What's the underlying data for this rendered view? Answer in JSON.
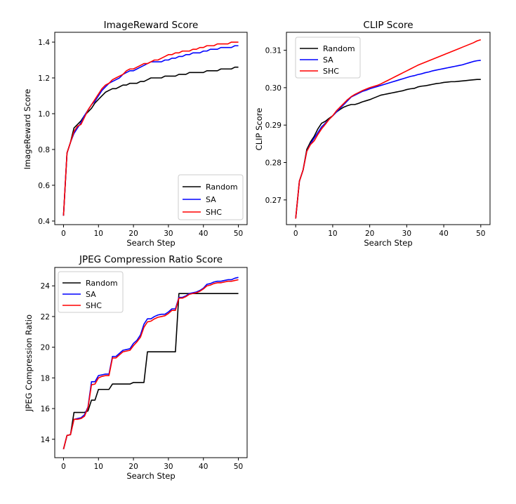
{
  "chart_data": [
    {
      "type": "line",
      "title": "ImageReward Score",
      "xlabel": "Search Step",
      "ylabel": "ImageReward Score",
      "xlim": [
        -2.5,
        52.5
      ],
      "ylim": [
        0.38,
        1.455
      ],
      "xticks": [
        0,
        10,
        20,
        30,
        40,
        50
      ],
      "xtick_labels": [
        "0",
        "10",
        "20",
        "30",
        "40",
        "50"
      ],
      "yticks": [
        0.4,
        0.6,
        0.8,
        1.0,
        1.2,
        1.4
      ],
      "ytick_labels": [
        "0.4",
        "0.6",
        "0.8",
        "1.0",
        "1.2",
        "1.4"
      ],
      "legend_position": "lower-right",
      "series": [
        {
          "name": "Random",
          "color": "#000000",
          "x": [
            0,
            1,
            2,
            3,
            4,
            5,
            6,
            7,
            8,
            9,
            10,
            11,
            12,
            13,
            14,
            15,
            16,
            17,
            18,
            19,
            20,
            21,
            22,
            23,
            24,
            25,
            26,
            27,
            28,
            29,
            30,
            31,
            32,
            33,
            34,
            35,
            36,
            37,
            38,
            39,
            40,
            41,
            42,
            43,
            44,
            45,
            46,
            47,
            48,
            49,
            50
          ],
          "y": [
            0.43,
            0.78,
            0.84,
            0.92,
            0.94,
            0.96,
            0.99,
            1.01,
            1.03,
            1.06,
            1.08,
            1.1,
            1.12,
            1.13,
            1.14,
            1.14,
            1.15,
            1.16,
            1.16,
            1.17,
            1.17,
            1.17,
            1.18,
            1.18,
            1.19,
            1.2,
            1.2,
            1.2,
            1.2,
            1.21,
            1.21,
            1.21,
            1.21,
            1.22,
            1.22,
            1.22,
            1.23,
            1.23,
            1.23,
            1.23,
            1.23,
            1.24,
            1.24,
            1.24,
            1.24,
            1.25,
            1.25,
            1.25,
            1.25,
            1.26,
            1.26
          ]
        },
        {
          "name": "SA",
          "color": "#0000ff",
          "x": [
            0,
            1,
            2,
            3,
            4,
            5,
            6,
            7,
            8,
            9,
            10,
            11,
            12,
            13,
            14,
            15,
            16,
            17,
            18,
            19,
            20,
            21,
            22,
            23,
            24,
            25,
            26,
            27,
            28,
            29,
            30,
            31,
            32,
            33,
            34,
            35,
            36,
            37,
            38,
            39,
            40,
            41,
            42,
            43,
            44,
            45,
            46,
            47,
            48,
            49,
            50
          ],
          "y": [
            0.43,
            0.78,
            0.84,
            0.89,
            0.92,
            0.95,
            0.99,
            1.02,
            1.05,
            1.07,
            1.1,
            1.13,
            1.15,
            1.17,
            1.18,
            1.19,
            1.2,
            1.22,
            1.23,
            1.24,
            1.24,
            1.25,
            1.26,
            1.27,
            1.28,
            1.29,
            1.29,
            1.29,
            1.29,
            1.3,
            1.3,
            1.31,
            1.31,
            1.32,
            1.32,
            1.33,
            1.33,
            1.34,
            1.34,
            1.34,
            1.35,
            1.35,
            1.36,
            1.36,
            1.36,
            1.37,
            1.37,
            1.37,
            1.37,
            1.38,
            1.38
          ]
        },
        {
          "name": "SHC",
          "color": "#ff0000",
          "x": [
            0,
            1,
            2,
            3,
            4,
            5,
            6,
            7,
            8,
            9,
            10,
            11,
            12,
            13,
            14,
            15,
            16,
            17,
            18,
            19,
            20,
            21,
            22,
            23,
            24,
            25,
            26,
            27,
            28,
            29,
            30,
            31,
            32,
            33,
            34,
            35,
            36,
            37,
            38,
            39,
            40,
            41,
            42,
            43,
            44,
            45,
            46,
            47,
            48,
            49,
            50
          ],
          "y": [
            0.43,
            0.78,
            0.84,
            0.9,
            0.93,
            0.94,
            0.98,
            1.02,
            1.05,
            1.08,
            1.11,
            1.14,
            1.16,
            1.17,
            1.19,
            1.2,
            1.21,
            1.22,
            1.24,
            1.25,
            1.25,
            1.26,
            1.27,
            1.28,
            1.28,
            1.29,
            1.3,
            1.3,
            1.31,
            1.32,
            1.33,
            1.33,
            1.34,
            1.34,
            1.35,
            1.35,
            1.35,
            1.36,
            1.36,
            1.37,
            1.37,
            1.38,
            1.38,
            1.38,
            1.39,
            1.39,
            1.39,
            1.39,
            1.4,
            1.4,
            1.4
          ]
        }
      ]
    },
    {
      "type": "line",
      "title": "CLIP Score",
      "xlabel": "Search Step",
      "ylabel": "CLIP Score",
      "xlim": [
        -2.5,
        52.5
      ],
      "ylim": [
        0.2634,
        0.3148
      ],
      "xticks": [
        0,
        10,
        20,
        30,
        40,
        50
      ],
      "xtick_labels": [
        "0",
        "10",
        "20",
        "30",
        "40",
        "50"
      ],
      "yticks": [
        0.27,
        0.28,
        0.29,
        0.3,
        0.31
      ],
      "ytick_labels": [
        "0.27",
        "0.28",
        "0.29",
        "0.30",
        "0.31"
      ],
      "legend_position": "top-left",
      "series": [
        {
          "name": "Random",
          "color": "#000000",
          "x": [
            0,
            1,
            2,
            3,
            4,
            5,
            6,
            7,
            8,
            9,
            10,
            11,
            12,
            13,
            14,
            15,
            16,
            17,
            18,
            19,
            20,
            21,
            22,
            23,
            24,
            25,
            26,
            27,
            28,
            29,
            30,
            31,
            32,
            33,
            34,
            35,
            36,
            37,
            38,
            39,
            40,
            41,
            42,
            43,
            44,
            45,
            46,
            47,
            48,
            49,
            50
          ],
          "y": [
            0.265,
            0.275,
            0.278,
            0.2835,
            0.2855,
            0.287,
            0.289,
            0.2905,
            0.291,
            0.2918,
            0.2925,
            0.2935,
            0.2942,
            0.2948,
            0.2952,
            0.2955,
            0.2955,
            0.2958,
            0.2962,
            0.2965,
            0.2968,
            0.2972,
            0.2976,
            0.298,
            0.2982,
            0.2984,
            0.2986,
            0.2988,
            0.299,
            0.2992,
            0.2995,
            0.2997,
            0.2998,
            0.3002,
            0.3004,
            0.3005,
            0.3007,
            0.3009,
            0.3011,
            0.3012,
            0.3014,
            0.3015,
            0.3016,
            0.3016,
            0.3017,
            0.3018,
            0.3019,
            0.302,
            0.3021,
            0.3022,
            0.3022
          ]
        },
        {
          "name": "SA",
          "color": "#0000ff",
          "x": [
            0,
            1,
            2,
            3,
            4,
            5,
            6,
            7,
            8,
            9,
            10,
            11,
            12,
            13,
            14,
            15,
            16,
            17,
            18,
            19,
            20,
            21,
            22,
            23,
            24,
            25,
            26,
            27,
            28,
            29,
            30,
            31,
            32,
            33,
            34,
            35,
            36,
            37,
            38,
            39,
            40,
            41,
            42,
            43,
            44,
            45,
            46,
            47,
            48,
            49,
            50
          ],
          "y": [
            0.265,
            0.275,
            0.278,
            0.283,
            0.285,
            0.2865,
            0.288,
            0.2895,
            0.2905,
            0.2915,
            0.2925,
            0.2935,
            0.2945,
            0.2955,
            0.2965,
            0.2975,
            0.298,
            0.2985,
            0.299,
            0.2993,
            0.2997,
            0.3,
            0.3003,
            0.3006,
            0.3009,
            0.3012,
            0.3015,
            0.3018,
            0.3021,
            0.3024,
            0.3027,
            0.303,
            0.3032,
            0.3035,
            0.3037,
            0.304,
            0.3042,
            0.3045,
            0.3047,
            0.3049,
            0.3051,
            0.3053,
            0.3055,
            0.3057,
            0.3059,
            0.3061,
            0.3064,
            0.3067,
            0.307,
            0.3072,
            0.3073
          ]
        },
        {
          "name": "SHC",
          "color": "#ff0000",
          "x": [
            0,
            1,
            2,
            3,
            4,
            5,
            6,
            7,
            8,
            9,
            10,
            11,
            12,
            13,
            14,
            15,
            16,
            17,
            18,
            19,
            20,
            21,
            22,
            23,
            24,
            25,
            26,
            27,
            28,
            29,
            30,
            31,
            32,
            33,
            34,
            35,
            36,
            37,
            38,
            39,
            40,
            41,
            42,
            43,
            44,
            45,
            46,
            47,
            48,
            49,
            50
          ],
          "y": [
            0.265,
            0.275,
            0.278,
            0.283,
            0.2848,
            0.2858,
            0.2875,
            0.289,
            0.2902,
            0.2915,
            0.2925,
            0.2938,
            0.2948,
            0.2958,
            0.2968,
            0.2976,
            0.2982,
            0.2987,
            0.2992,
            0.2996,
            0.3,
            0.3003,
            0.3006,
            0.301,
            0.3015,
            0.302,
            0.3025,
            0.303,
            0.3035,
            0.304,
            0.3045,
            0.305,
            0.3055,
            0.306,
            0.3064,
            0.3068,
            0.3072,
            0.3076,
            0.308,
            0.3084,
            0.3088,
            0.3092,
            0.3096,
            0.31,
            0.3104,
            0.3108,
            0.3112,
            0.3116,
            0.312,
            0.3125,
            0.3128
          ]
        }
      ]
    },
    {
      "type": "line",
      "title": "JPEG Compression Ratio Score",
      "xlabel": "Search Step",
      "ylabel": "JPEG Compression Ratio",
      "xlim": [
        -2.5,
        52.5
      ],
      "ylim": [
        12.8,
        25.2
      ],
      "xticks": [
        0,
        10,
        20,
        30,
        40,
        50
      ],
      "xtick_labels": [
        "0",
        "10",
        "20",
        "30",
        "40",
        "50"
      ],
      "yticks": [
        14,
        16,
        18,
        20,
        22,
        24
      ],
      "ytick_labels": [
        "14",
        "16",
        "18",
        "20",
        "22",
        "24"
      ],
      "legend_position": "top-left",
      "series": [
        {
          "name": "Random",
          "color": "#000000",
          "x": [
            0,
            1,
            2,
            3,
            4,
            5,
            6,
            7,
            8,
            9,
            10,
            11,
            12,
            13,
            14,
            15,
            16,
            17,
            18,
            19,
            20,
            21,
            22,
            23,
            24,
            25,
            26,
            27,
            28,
            29,
            30,
            31,
            32,
            33,
            34,
            35,
            36,
            37,
            38,
            39,
            40,
            41,
            42,
            43,
            44,
            45,
            46,
            47,
            48,
            49,
            50
          ],
          "y": [
            13.35,
            14.25,
            14.3,
            15.75,
            15.75,
            15.75,
            15.75,
            15.85,
            16.55,
            16.55,
            17.25,
            17.25,
            17.25,
            17.25,
            17.6,
            17.6,
            17.6,
            17.6,
            17.6,
            17.6,
            17.7,
            17.7,
            17.7,
            17.7,
            19.7,
            19.7,
            19.7,
            19.7,
            19.7,
            19.7,
            19.7,
            19.7,
            19.7,
            23.5,
            23.5,
            23.5,
            23.5,
            23.5,
            23.5,
            23.5,
            23.5,
            23.5,
            23.5,
            23.5,
            23.5,
            23.5,
            23.5,
            23.5,
            23.5,
            23.5,
            23.5
          ]
        },
        {
          "name": "SA",
          "color": "#0000ff",
          "x": [
            0,
            1,
            2,
            3,
            4,
            5,
            6,
            7,
            8,
            9,
            10,
            11,
            12,
            13,
            14,
            15,
            16,
            17,
            18,
            19,
            20,
            21,
            22,
            23,
            24,
            25,
            26,
            27,
            28,
            29,
            30,
            31,
            32,
            33,
            34,
            35,
            36,
            37,
            38,
            39,
            40,
            41,
            42,
            43,
            44,
            45,
            46,
            47,
            48,
            49,
            50
          ],
          "y": [
            13.35,
            14.25,
            14.3,
            15.3,
            15.35,
            15.4,
            15.6,
            16.1,
            17.75,
            17.75,
            18.15,
            18.2,
            18.25,
            18.25,
            19.4,
            19.4,
            19.6,
            19.8,
            19.85,
            19.9,
            20.25,
            20.45,
            20.8,
            21.5,
            21.85,
            21.85,
            22.0,
            22.1,
            22.15,
            22.15,
            22.3,
            22.5,
            22.5,
            23.25,
            23.25,
            23.35,
            23.5,
            23.55,
            23.6,
            23.7,
            23.85,
            24.1,
            24.15,
            24.25,
            24.3,
            24.3,
            24.35,
            24.4,
            24.4,
            24.5,
            24.55
          ]
        },
        {
          "name": "SHC",
          "color": "#ff0000",
          "x": [
            0,
            1,
            2,
            3,
            4,
            5,
            6,
            7,
            8,
            9,
            10,
            11,
            12,
            13,
            14,
            15,
            16,
            17,
            18,
            19,
            20,
            21,
            22,
            23,
            24,
            25,
            26,
            27,
            28,
            29,
            30,
            31,
            32,
            33,
            34,
            35,
            36,
            37,
            38,
            39,
            40,
            41,
            42,
            43,
            44,
            45,
            46,
            47,
            48,
            49,
            50
          ],
          "y": [
            13.35,
            14.25,
            14.3,
            15.3,
            15.3,
            15.35,
            15.5,
            16.05,
            17.55,
            17.6,
            18.0,
            18.1,
            18.15,
            18.15,
            19.3,
            19.3,
            19.5,
            19.7,
            19.75,
            19.8,
            20.1,
            20.35,
            20.65,
            21.3,
            21.65,
            21.7,
            21.85,
            21.95,
            22.0,
            22.05,
            22.2,
            22.4,
            22.4,
            23.2,
            23.2,
            23.3,
            23.45,
            23.5,
            23.55,
            23.65,
            23.8,
            24.0,
            24.05,
            24.15,
            24.2,
            24.2,
            24.25,
            24.3,
            24.3,
            24.35,
            24.4
          ]
        }
      ]
    }
  ]
}
